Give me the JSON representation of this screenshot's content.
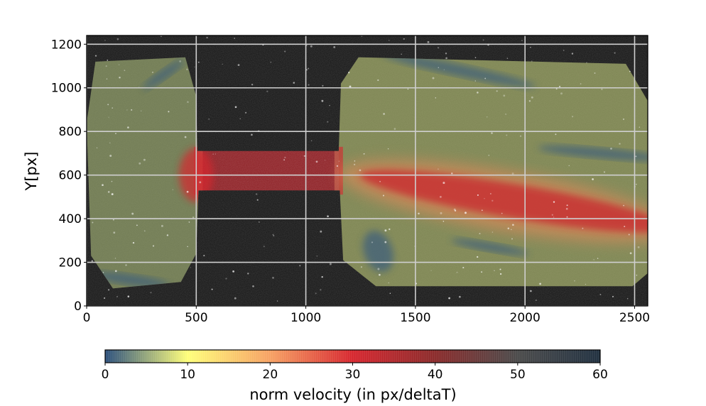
{
  "chart_data": {
    "type": "heatmap",
    "title": "",
    "xlabel": "",
    "ylabel": "Y[px]",
    "xlim": [
      0,
      2560
    ],
    "ylim": [
      0,
      1240
    ],
    "xticks": [
      0,
      500,
      1000,
      1500,
      2000,
      2500
    ],
    "yticks": [
      0,
      200,
      400,
      600,
      800,
      1000,
      1200
    ],
    "grid": true,
    "background": "dark grayscale particle image (PIV frame)",
    "field_description": "velocity magnitude overlay on two reservoirs joined by a channel",
    "regions": [
      {
        "name": "left-reservoir",
        "x": [
          0,
          510
        ],
        "y": [
          80,
          1140
        ],
        "typical_value": 6,
        "peak_value": 30
      },
      {
        "name": "channel",
        "x": [
          510,
          1150
        ],
        "y": [
          530,
          710
        ],
        "typical_value": 30
      },
      {
        "name": "right-reservoir",
        "x": [
          1150,
          2560
        ],
        "y": [
          90,
          1140
        ],
        "typical_value": 7,
        "jet_value": 32
      }
    ],
    "jet": {
      "from": [
        1150,
        600
      ],
      "to": [
        2560,
        360
      ],
      "value": 32
    },
    "colorbar": {
      "label": "norm velocity (in px/deltaT)",
      "range": [
        0,
        60
      ],
      "ticks": [
        0,
        10,
        20,
        30,
        40,
        50,
        60
      ],
      "orientation": "horizontal",
      "placement": "bottom",
      "colors": [
        "#2b4f7c",
        "#ffff7a",
        "#f7a163",
        "#d7262e",
        "#8a2a2a",
        "#4a4a4a",
        "#203040"
      ]
    }
  }
}
